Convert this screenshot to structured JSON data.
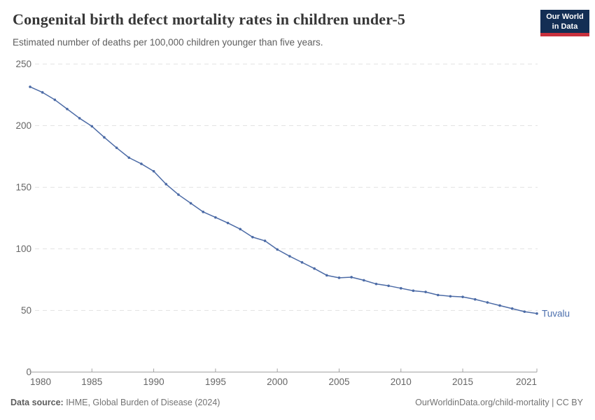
{
  "logo": {
    "line1": "Our World",
    "line2": "in Data"
  },
  "footer": {
    "source_label": "Data source:",
    "source_text": " IHME, Global Burden of Disease (2024)",
    "credit": "OurWorldinData.org/child-mortality | CC BY"
  },
  "chart_data": {
    "type": "line",
    "title": "Congenital birth defect mortality rates in children under-5",
    "subtitle": "Estimated number of deaths per 100,000 children younger than five years.",
    "xlabel": "",
    "ylabel": "",
    "xlim": [
      1980,
      2021
    ],
    "ylim": [
      0,
      250
    ],
    "x_ticks": [
      1980,
      1985,
      1990,
      1995,
      2000,
      2005,
      2010,
      2015,
      2021
    ],
    "y_ticks": [
      0,
      50,
      100,
      150,
      200,
      250
    ],
    "grid": "horizontal-dashed",
    "legend_position": "end-of-line-label",
    "series": [
      {
        "name": "Tuvalu",
        "color": "#4c6ba6",
        "label_color": "#4d70ae",
        "years": [
          1980,
          1981,
          1982,
          1983,
          1984,
          1985,
          1986,
          1987,
          1988,
          1989,
          1990,
          1991,
          1992,
          1993,
          1994,
          1995,
          1996,
          1997,
          1998,
          1999,
          2000,
          2001,
          2002,
          2003,
          2004,
          2005,
          2006,
          2007,
          2008,
          2009,
          2010,
          2011,
          2012,
          2013,
          2014,
          2015,
          2016,
          2017,
          2018,
          2019,
          2020,
          2021
        ],
        "values": [
          231.5,
          227,
          221,
          213.5,
          206,
          199.5,
          190.5,
          182,
          174,
          169,
          163,
          152.5,
          144,
          137,
          130,
          125.5,
          121,
          116,
          109.5,
          106.5,
          99.5,
          94,
          89,
          84,
          78.5,
          76.5,
          77,
          74.5,
          71.5,
          70,
          68,
          66,
          65,
          62.5,
          61.5,
          61,
          59,
          56.5,
          54,
          51.5,
          49,
          47.5
        ]
      }
    ],
    "colors": {
      "gridline": "#e3e3e3",
      "axis": "#a3a3a3",
      "tick_label": "#666666",
      "title": "#373737",
      "subtitle": "#5e5e5e"
    }
  }
}
